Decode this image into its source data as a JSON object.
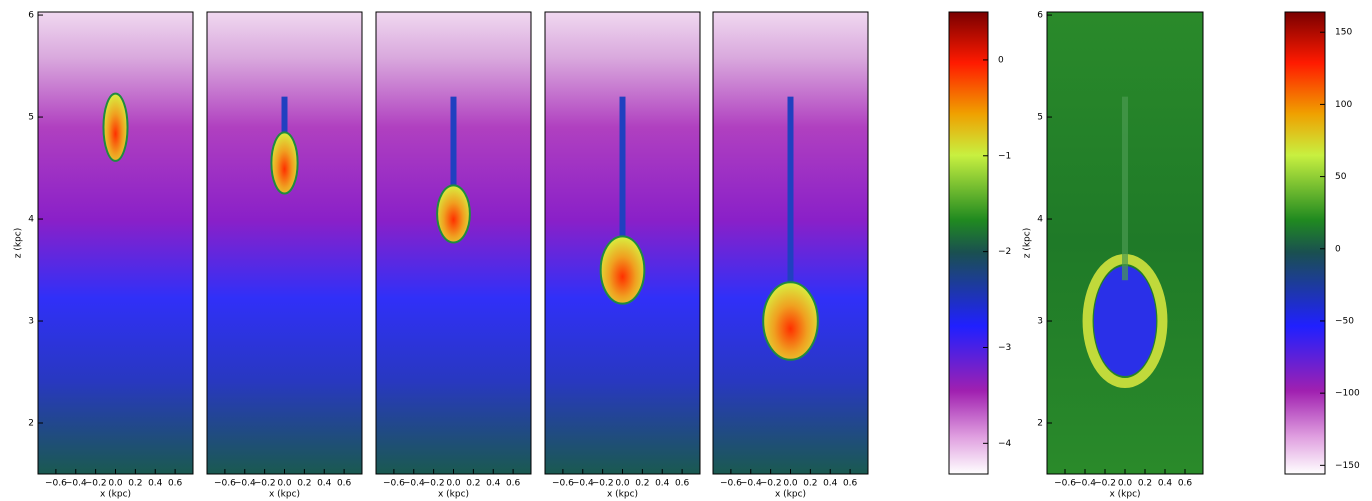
{
  "chart_data": [
    {
      "type": "image",
      "xlabel": "x (kpc)",
      "ylabel": "z (kpc)",
      "xlim": [
        -0.78,
        0.78
      ],
      "ylim": [
        1.5,
        6.03
      ],
      "xticks": [
        {
          "value": -0.6,
          "label": "−0.6"
        },
        {
          "value": -0.4,
          "label": "−0.4"
        },
        {
          "value": -0.2,
          "label": "−0.2"
        },
        {
          "value": 0,
          "label": "0.0"
        },
        0.2,
        0.4,
        0.6
      ],
      "yticks": [
        2,
        3,
        4,
        5,
        6
      ]
    },
    {
      "type": "image",
      "xlabel": "x (kpc)",
      "xlim": [
        -0.78,
        0.78
      ],
      "ylim": [
        1.5,
        6.03
      ],
      "xticks": [
        {
          "value": -0.6,
          "label": "−0.6"
        },
        {
          "value": -0.4,
          "label": "−0.4"
        },
        {
          "value": -0.2,
          "label": "−0.2"
        },
        {
          "value": 0,
          "label": "0.0"
        },
        0.2,
        0.4,
        0.6
      ]
    },
    {
      "type": "image",
      "xlabel": "x (kpc)",
      "xlim": [
        -0.78,
        0.78
      ],
      "ylim": [
        1.5,
        6.03
      ],
      "xticks": [
        {
          "value": -0.6,
          "label": "−0.6"
        },
        {
          "value": -0.4,
          "label": "−0.4"
        },
        {
          "value": -0.2,
          "label": "−0.2"
        },
        {
          "value": 0,
          "label": "0.0"
        },
        0.2,
        0.4,
        0.6
      ]
    },
    {
      "type": "image",
      "xlabel": "x (kpc)",
      "xlim": [
        -0.78,
        0.78
      ],
      "ylim": [
        1.5,
        6.03
      ],
      "xticks": [
        {
          "value": -0.6,
          "label": "−0.6"
        },
        {
          "value": -0.4,
          "label": "−0.4"
        },
        {
          "value": -0.2,
          "label": "−0.2"
        },
        {
          "value": 0,
          "label": "0.0"
        },
        0.2,
        0.4,
        0.6
      ]
    },
    {
      "type": "image",
      "xlabel": "x (kpc)",
      "xlim": [
        -0.78,
        0.78
      ],
      "ylim": [
        1.5,
        6.03
      ],
      "xticks": [
        {
          "value": -0.6,
          "label": "−0.6"
        },
        {
          "value": -0.4,
          "label": "−0.4"
        },
        {
          "value": -0.2,
          "label": "−0.2"
        },
        {
          "value": 0,
          "label": "0.0"
        },
        0.2,
        0.4,
        0.6
      ]
    },
    {
      "type": "colorbar",
      "ylim": [
        -4.32,
        0.5
      ],
      "yticks": [
        0,
        {
          "value": -1,
          "label": "−1"
        },
        {
          "value": -2,
          "label": "−2"
        },
        {
          "value": -3,
          "label": "−3"
        },
        {
          "value": -4,
          "label": "−4"
        }
      ]
    },
    {
      "type": "image",
      "xlabel": "x (kpc)",
      "ylabel": "z (kpc)",
      "xlim": [
        -0.78,
        0.78
      ],
      "ylim": [
        1.5,
        6.03
      ],
      "xticks": [
        {
          "value": -0.6,
          "label": "−0.6"
        },
        {
          "value": -0.4,
          "label": "−0.4"
        },
        {
          "value": -0.2,
          "label": "−0.2"
        },
        {
          "value": 0,
          "label": "0.0"
        },
        0.2,
        0.4,
        0.6
      ],
      "yticks": [
        2,
        3,
        4,
        5,
        6
      ]
    },
    {
      "type": "colorbar",
      "ylim": [
        -156,
        164
      ],
      "yticks": [
        150,
        100,
        50,
        0,
        {
          "value": -50,
          "label": "−50"
        },
        {
          "value": -100,
          "label": "−100"
        },
        {
          "value": -150,
          "label": "−150"
        }
      ]
    }
  ]
}
